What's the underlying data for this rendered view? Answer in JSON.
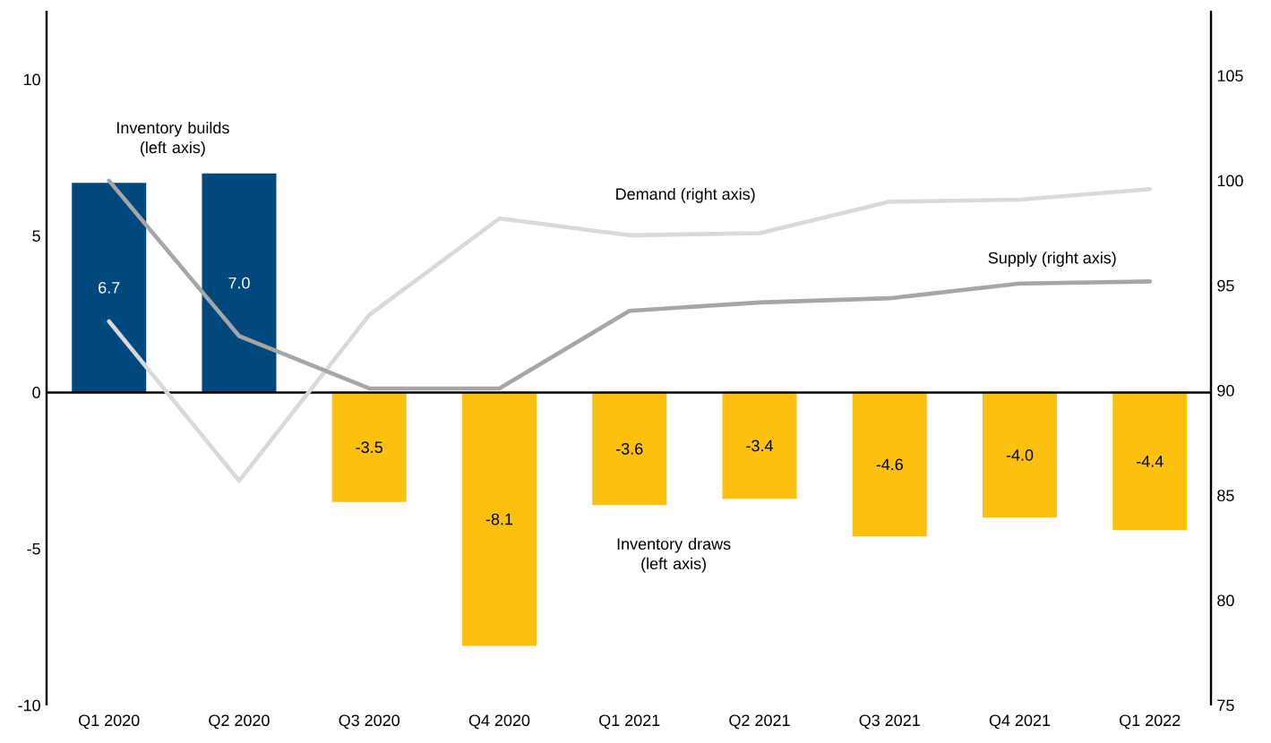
{
  "chart_data": {
    "type": "bar",
    "categories": [
      "Q1 2020",
      "Q2 2020",
      "Q3 2020",
      "Q4 2020",
      "Q1 2021",
      "Q2 2021",
      "Q3 2021",
      "Q4 2021",
      "Q1 2022"
    ],
    "series": [
      {
        "name": "Inventory builds (left axis)",
        "color": "#00487d",
        "values": [
          6.7,
          7.0,
          null,
          null,
          null,
          null,
          null,
          null,
          null
        ],
        "value_labels": [
          "6.7",
          "7.0",
          null,
          null,
          null,
          null,
          null,
          null,
          null
        ]
      },
      {
        "name": "Inventory draws (left axis)",
        "color": "#fbc10e",
        "values": [
          null,
          null,
          -3.5,
          -8.1,
          -3.6,
          -3.4,
          -4.6,
          -4.0,
          -4.4
        ],
        "value_labels": [
          null,
          null,
          "-3.5",
          "-8.1",
          "-3.6",
          "-3.4",
          "-4.6",
          "-4.0",
          "-4.4"
        ]
      },
      {
        "name": "Demand (right axis)",
        "type": "line",
        "axis": "y2",
        "color": "#d9d9d9",
        "values": [
          93.3,
          85.7,
          93.6,
          98.2,
          97.4,
          97.5,
          99.0,
          99.1,
          99.6
        ]
      },
      {
        "name": "Supply (right axis)",
        "type": "line",
        "axis": "y2",
        "color": "#a6a6a6",
        "values": [
          100.0,
          92.6,
          90.1,
          90.1,
          93.8,
          94.2,
          94.4,
          95.1,
          95.2
        ]
      }
    ],
    "ylim": [
      -10,
      12.2
    ],
    "yticks": [
      -10,
      -5,
      0,
      5,
      10
    ],
    "y2lim": [
      75,
      108.1
    ],
    "y2ticks": [
      75,
      80,
      85,
      90,
      95,
      100,
      105
    ],
    "ref_lines": [
      {
        "axis": "y",
        "value": 0,
        "color": "#000000"
      }
    ],
    "marker": "none",
    "line_style": "solid"
  }
}
